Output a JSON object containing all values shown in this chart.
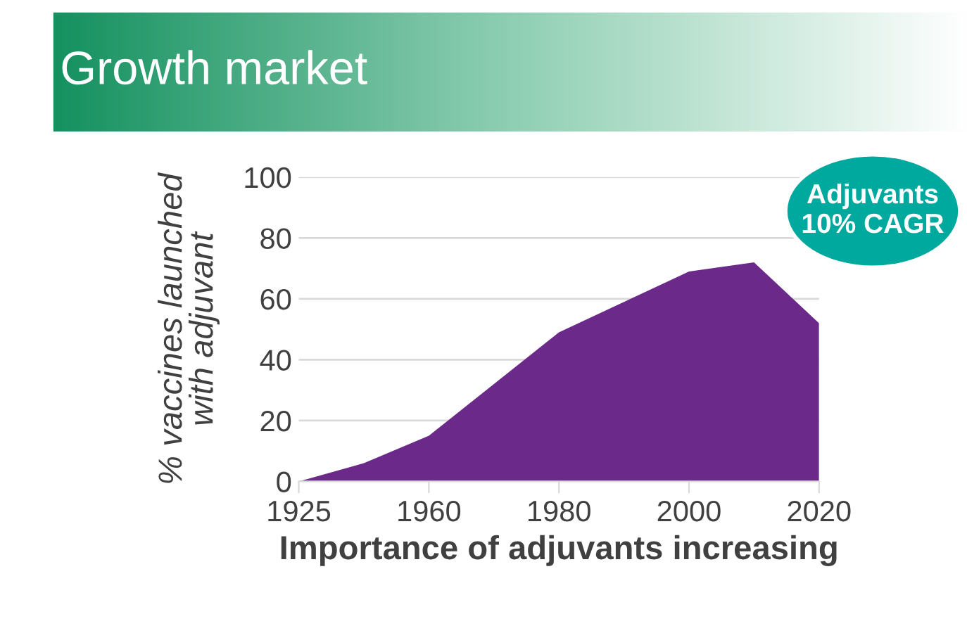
{
  "chart_data": {
    "type": "area",
    "title": "Growth market",
    "ylabel": "% vaccines launched\nwith adjuvant",
    "xlabel": "Importance of adjuvants increasing",
    "categories": [
      "1925",
      null,
      "1960",
      null,
      "1980",
      null,
      "2000",
      null,
      "2020"
    ],
    "values": [
      0,
      6,
      15,
      32,
      49,
      59,
      69,
      72,
      52
    ],
    "color": "#6b2a8a",
    "ylim": [
      0,
      100
    ],
    "yticks": [
      0,
      20,
      40,
      60,
      80,
      100
    ],
    "grid": "y",
    "annotations": [
      "Adjuvants\n10% CAGR"
    ]
  }
}
